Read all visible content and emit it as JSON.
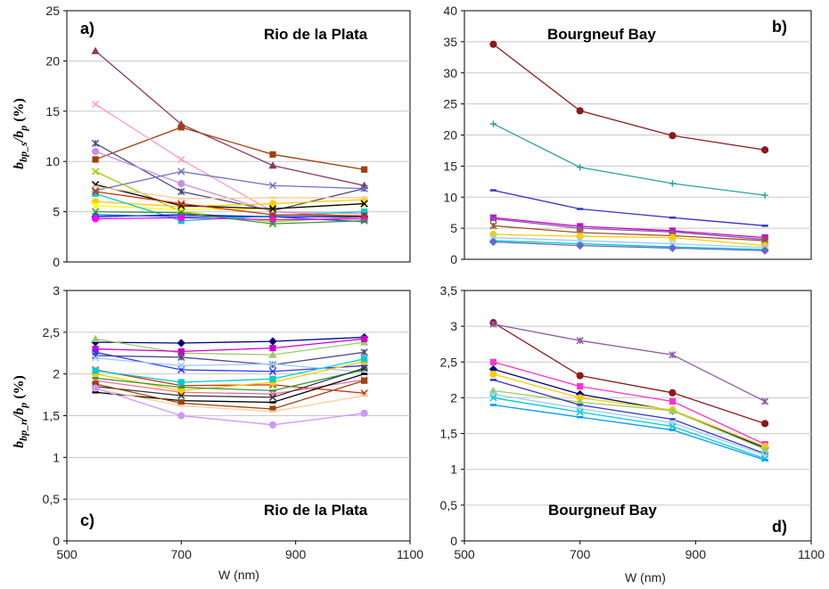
{
  "figure": {
    "xlabel_left": "W (nm)",
    "xlabel_right": "W (nm)",
    "ylabel_top": "b_bp_s / b_p (%)",
    "ylabel_bottom": "b_bp_n / b_p (%)"
  },
  "chart_data": [
    {
      "id": "a",
      "type": "line",
      "letter": "a)",
      "title": "Rio de la Plata",
      "ylim": [
        0,
        25
      ],
      "yticks": [
        "0",
        "5",
        "10",
        "15",
        "20",
        "25"
      ],
      "xlim": [
        500,
        1100
      ],
      "xticks": [],
      "x": [
        550,
        700,
        860,
        1020
      ],
      "series": [
        {
          "color": "#8b3a62",
          "marker": "triangle",
          "values": [
            21.0,
            13.7,
            9.6,
            7.6
          ]
        },
        {
          "color": "#a0410d",
          "marker": "square",
          "values": [
            10.2,
            13.4,
            10.7,
            9.2
          ]
        },
        {
          "color": "#ff99cc",
          "marker": "x",
          "values": [
            15.7,
            10.2,
            5.0,
            4.8
          ]
        },
        {
          "color": "#4b4b8c",
          "marker": "star",
          "values": [
            11.8,
            7.0,
            5.1,
            7.3
          ]
        },
        {
          "color": "#c890e0",
          "marker": "circle",
          "values": [
            11.0,
            7.8,
            5.0,
            4.5
          ]
        },
        {
          "color": "#6f6fc8",
          "marker": "x",
          "values": [
            7.1,
            9.0,
            7.6,
            7.3
          ]
        },
        {
          "color": "#99cc00",
          "marker": "x",
          "values": [
            9.0,
            5.0,
            4.0,
            4.5
          ]
        },
        {
          "color": "#ffcc00",
          "marker": "circle",
          "values": [
            6.0,
            5.5,
            5.8,
            6.2
          ]
        },
        {
          "color": "#ffff00",
          "marker": "star",
          "values": [
            5.6,
            5.2,
            5.3,
            5.8
          ]
        },
        {
          "color": "#000000",
          "marker": "x",
          "values": [
            7.7,
            5.6,
            5.3,
            5.8
          ]
        },
        {
          "color": "#00cccc",
          "marker": "square",
          "values": [
            6.8,
            4.1,
            4.6,
            5.0
          ]
        },
        {
          "color": "#0000cc",
          "marker": "diamond",
          "values": [
            4.5,
            4.7,
            4.5,
            4.5
          ]
        },
        {
          "color": "#0066ff",
          "marker": "dash",
          "values": [
            4.7,
            4.5,
            4.5,
            4.0
          ]
        },
        {
          "color": "#ff00ff",
          "marker": "circle",
          "values": [
            4.3,
            4.4,
            4.2,
            4.3
          ]
        },
        {
          "color": "#339933",
          "marker": "x",
          "values": [
            5.0,
            4.9,
            3.8,
            4.1
          ]
        },
        {
          "color": "#cc3300",
          "marker": "x",
          "values": [
            7.0,
            5.8,
            4.7,
            4.6
          ]
        },
        {
          "color": "#ffcc99",
          "marker": "dash",
          "values": [
            7.5,
            6.3,
            6.4,
            6.4
          ]
        }
      ]
    },
    {
      "id": "b",
      "type": "line",
      "letter": "b)",
      "title": "Bourgneuf Bay",
      "ylim": [
        0,
        40
      ],
      "yticks": [
        "0",
        "5",
        "10",
        "15",
        "20",
        "25",
        "30",
        "35",
        "40"
      ],
      "xlim": [
        500,
        1100
      ],
      "xticks": [],
      "x": [
        550,
        700,
        860,
        1020
      ],
      "series": [
        {
          "color": "#8b1a1a",
          "marker": "circle",
          "values": [
            34.6,
            23.9,
            19.9,
            17.6
          ]
        },
        {
          "color": "#2f9f9f",
          "marker": "plus",
          "values": [
            21.8,
            14.8,
            12.2,
            10.3
          ]
        },
        {
          "color": "#3333cc",
          "marker": "dash",
          "values": [
            11.1,
            8.1,
            6.7,
            5.4
          ]
        },
        {
          "color": "#cc00cc",
          "marker": "square",
          "values": [
            6.7,
            5.3,
            4.6,
            3.5
          ]
        },
        {
          "color": "#8c5aa8",
          "marker": "x",
          "values": [
            6.5,
            5.0,
            4.4,
            3.2
          ]
        },
        {
          "color": "#a0522d",
          "marker": "star",
          "values": [
            5.4,
            4.3,
            3.8,
            3.0
          ]
        },
        {
          "color": "#ffcc00",
          "marker": "circle",
          "values": [
            4.0,
            3.7,
            3.5,
            2.2
          ]
        },
        {
          "color": "#99ccff",
          "marker": "x",
          "values": [
            3.5,
            3.0,
            2.5,
            1.9
          ]
        },
        {
          "color": "#00cccc",
          "marker": "dash",
          "values": [
            3.0,
            2.5,
            2.0,
            1.6
          ]
        },
        {
          "color": "#6666cc",
          "marker": "diamond",
          "values": [
            2.8,
            2.2,
            1.8,
            1.4
          ]
        }
      ]
    },
    {
      "id": "c",
      "type": "line",
      "letter": "c)",
      "title": "Rio de la Plata",
      "ylim": [
        0,
        3
      ],
      "yticks": [
        "0",
        "0,5",
        "1",
        "1,5",
        "2",
        "2,5",
        "3"
      ],
      "xlim": [
        500,
        1100
      ],
      "xticks": [
        "500",
        "700",
        "900",
        "1100"
      ],
      "x": [
        550,
        700,
        860,
        1020
      ],
      "series": [
        {
          "color": "#000080",
          "marker": "diamond",
          "values": [
            2.38,
            2.37,
            2.39,
            2.44
          ]
        },
        {
          "color": "#99cc66",
          "marker": "triangle",
          "values": [
            2.42,
            2.25,
            2.23,
            2.38
          ]
        },
        {
          "color": "#cc00cc",
          "marker": "square",
          "values": [
            2.3,
            2.27,
            2.31,
            2.42
          ]
        },
        {
          "color": "#4b4b8c",
          "marker": "star",
          "values": [
            2.22,
            2.2,
            2.11,
            2.26
          ]
        },
        {
          "color": "#3333ff",
          "marker": "x",
          "values": [
            2.26,
            2.05,
            2.03,
            2.1
          ]
        },
        {
          "color": "#99ccff",
          "marker": "x",
          "values": [
            2.19,
            2.1,
            2.12,
            2.02
          ]
        },
        {
          "color": "#cc3300",
          "marker": "x",
          "values": [
            2.05,
            1.86,
            1.87,
            1.77
          ]
        },
        {
          "color": "#ff6699",
          "marker": "x",
          "values": [
            1.92,
            1.78,
            1.76,
            1.93
          ]
        },
        {
          "color": "#ffcc00",
          "marker": "circle",
          "values": [
            2.0,
            1.8,
            1.9,
            2.15
          ]
        },
        {
          "color": "#00cccc",
          "marker": "square",
          "values": [
            2.04,
            1.9,
            1.94,
            2.18
          ]
        },
        {
          "color": "#339933",
          "marker": "dash",
          "values": [
            1.95,
            1.84,
            1.8,
            2.05
          ]
        },
        {
          "color": "#333333",
          "marker": "x",
          "values": [
            1.85,
            1.74,
            1.72,
            2.07
          ]
        },
        {
          "color": "#000000",
          "marker": "dash",
          "values": [
            1.78,
            1.68,
            1.66,
            2.0
          ]
        },
        {
          "color": "#a0410d",
          "marker": "square",
          "values": [
            1.88,
            1.65,
            1.58,
            1.92
          ]
        },
        {
          "color": "#ffcc99",
          "marker": "dash",
          "values": [
            1.82,
            1.62,
            1.55,
            1.74
          ]
        },
        {
          "color": "#cc99ff",
          "marker": "circle",
          "values": [
            1.83,
            1.5,
            1.39,
            1.53
          ]
        }
      ]
    },
    {
      "id": "d",
      "type": "line",
      "letter": "d)",
      "title": "Bourgneuf Bay",
      "ylim": [
        0,
        3.5
      ],
      "yticks": [
        "0",
        "0,5",
        "1",
        "1,5",
        "2",
        "2,5",
        "3",
        "3,5"
      ],
      "xlim": [
        500,
        1100
      ],
      "xticks": [
        "500",
        "700",
        "900",
        "1100"
      ],
      "x": [
        550,
        700,
        860,
        1020
      ],
      "series": [
        {
          "color": "#8b1a1a",
          "marker": "circle",
          "values": [
            3.05,
            2.31,
            2.07,
            1.64
          ]
        },
        {
          "color": "#8c5aa8",
          "marker": "star",
          "values": [
            3.03,
            2.8,
            2.6,
            1.95
          ]
        },
        {
          "color": "#ff33cc",
          "marker": "square",
          "values": [
            2.5,
            2.16,
            1.95,
            1.35
          ]
        },
        {
          "color": "#000080",
          "marker": "diamond",
          "values": [
            2.4,
            2.05,
            1.82,
            1.3
          ]
        },
        {
          "color": "#ffcc00",
          "marker": "circle",
          "values": [
            2.33,
            2.0,
            1.83,
            1.32
          ]
        },
        {
          "color": "#99cc66",
          "marker": "triangle",
          "values": [
            2.1,
            1.94,
            1.82,
            1.28
          ]
        },
        {
          "color": "#3333cc",
          "marker": "dash",
          "values": [
            2.25,
            1.9,
            1.7,
            1.22
          ]
        },
        {
          "color": "#99ccff",
          "marker": "x",
          "values": [
            2.05,
            1.85,
            1.65,
            1.2
          ]
        },
        {
          "color": "#00cccc",
          "marker": "x",
          "values": [
            2.0,
            1.8,
            1.6,
            1.15
          ]
        },
        {
          "color": "#0099ff",
          "marker": "dash",
          "values": [
            1.9,
            1.73,
            1.55,
            1.13
          ]
        }
      ]
    }
  ]
}
